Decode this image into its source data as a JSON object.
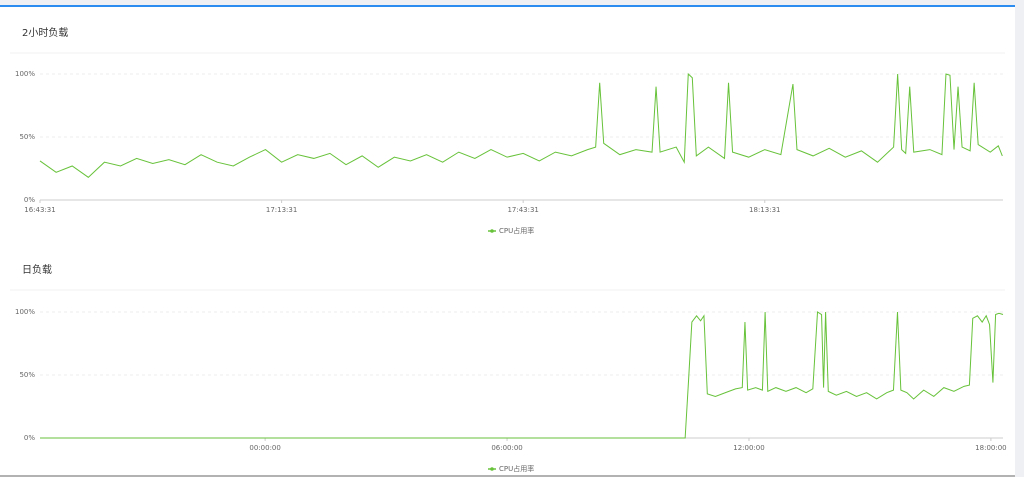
{
  "chart_data": [
    {
      "type": "line",
      "title": "2小时负载",
      "x": [
        "16:43:31",
        "16:45:31",
        "16:47:31",
        "16:49:31",
        "16:51:31",
        "16:53:31",
        "16:55:31",
        "16:57:31",
        "16:59:31",
        "17:01:31",
        "17:03:31",
        "17:05:31",
        "17:07:31",
        "17:09:31",
        "17:11:31",
        "17:13:31",
        "17:15:31",
        "17:17:31",
        "17:19:31",
        "17:21:31",
        "17:23:31",
        "17:25:31",
        "17:27:31",
        "17:29:31",
        "17:31:31",
        "17:33:31",
        "17:35:31",
        "17:37:31",
        "17:39:31",
        "17:41:31",
        "17:43:31",
        "17:45:31",
        "17:47:31",
        "17:49:31",
        "17:51:31",
        "17:52:31",
        "17:53:01",
        "17:53:31",
        "17:55:31",
        "17:57:31",
        "17:59:31",
        "18:00:01",
        "18:00:31",
        "18:02:31",
        "18:03:31",
        "18:04:01",
        "18:04:31",
        "18:05:01",
        "18:06:31",
        "18:08:31",
        "18:09:01",
        "18:09:31",
        "18:11:31",
        "18:13:31",
        "18:15:31",
        "18:17:01",
        "18:17:31",
        "18:19:31",
        "18:21:31",
        "18:23:31",
        "18:25:31",
        "18:27:31",
        "18:29:31",
        "18:30:01",
        "18:30:31",
        "18:31:01",
        "18:31:31",
        "18:32:01",
        "18:34:01",
        "18:35:31",
        "18:36:01",
        "18:36:31",
        "18:37:01",
        "18:37:31",
        "18:38:01",
        "18:39:01",
        "18:39:31",
        "18:40:01",
        "18:41:31",
        "18:42:31",
        "18:43:01"
      ],
      "series": [
        {
          "name": "CPU占用率",
          "color": "#67c23a",
          "values": [
            31,
            22,
            27,
            18,
            30,
            27,
            33,
            29,
            32,
            28,
            36,
            30,
            27,
            34,
            40,
            30,
            36,
            33,
            37,
            28,
            35,
            26,
            34,
            31,
            36,
            30,
            38,
            33,
            40,
            34,
            37,
            31,
            38,
            35,
            40,
            42,
            93,
            45,
            36,
            40,
            38,
            90,
            38,
            42,
            30,
            100,
            97,
            35,
            42,
            33,
            93,
            38,
            34,
            40,
            36,
            92,
            40,
            35,
            41,
            34,
            39,
            30,
            42,
            100,
            40,
            37,
            90,
            38,
            40,
            36,
            100,
            99,
            40,
            90,
            42,
            39,
            93,
            44,
            38,
            43,
            35
          ]
        }
      ],
      "xlim": [
        "16:43:31",
        "18:43:06"
      ],
      "xticks": [
        "16:43:31",
        "17:13:31",
        "17:43:31",
        "18:13:31"
      ],
      "ylim": [
        0,
        100
      ],
      "yticks": [
        {
          "value": 0,
          "label": "0%"
        },
        {
          "value": 50,
          "label": "50%"
        },
        {
          "value": 100,
          "label": "100%"
        }
      ],
      "grid": true
    },
    {
      "type": "line",
      "title": "日负载",
      "x": [
        "18:25:00",
        "20:00:00",
        "22:00:00",
        "00:00:00",
        "02:00:00",
        "04:00:00",
        "06:00:00",
        "08:00:00",
        "10:00:00",
        "10:25:00",
        "10:30:00",
        "10:35:00",
        "10:42:00",
        "10:48:00",
        "10:53:00",
        "10:58:00",
        "11:10:00",
        "11:25:00",
        "11:40:00",
        "11:50:00",
        "11:54:00",
        "11:58:00",
        "12:10:00",
        "12:20:00",
        "12:24:00",
        "12:28:00",
        "12:40:00",
        "12:55:00",
        "13:10:00",
        "13:25:00",
        "13:35:00",
        "13:42:00",
        "13:48:00",
        "13:51:00",
        "13:54:00",
        "13:58:00",
        "14:10:00",
        "14:25:00",
        "14:40:00",
        "14:55:00",
        "15:10:00",
        "15:25:00",
        "15:35:00",
        "15:41:00",
        "15:46:00",
        "15:55:00",
        "16:05:00",
        "16:20:00",
        "16:35:00",
        "16:50:00",
        "17:05:00",
        "17:20:00",
        "17:28:00",
        "17:33:00",
        "17:40:00",
        "17:47:00",
        "17:53:00",
        "17:58:00",
        "18:03:00",
        "18:07:00",
        "18:12:00",
        "18:18:00"
      ],
      "series": [
        {
          "name": "CPU占用率",
          "color": "#67c23a",
          "values": [
            0,
            0,
            0,
            0,
            0,
            0,
            0,
            0,
            0,
            0,
            45,
            92,
            97,
            93,
            97,
            35,
            33,
            36,
            39,
            40,
            92,
            38,
            40,
            38,
            100,
            37,
            40,
            37,
            40,
            36,
            39,
            100,
            98,
            40,
            100,
            37,
            34,
            37,
            33,
            36,
            31,
            36,
            38,
            100,
            38,
            36,
            31,
            38,
            33,
            40,
            37,
            41,
            42,
            95,
            97,
            92,
            97,
            90,
            44,
            98,
            99,
            98
          ]
        }
      ],
      "xlim": [
        "18:25:00",
        "18:18:00"
      ],
      "xticks": [
        "00:00:00",
        "06:00:00",
        "12:00:00",
        "18:00:00"
      ],
      "ylim": [
        0,
        100
      ],
      "yticks": [
        {
          "value": 0,
          "label": "0%"
        },
        {
          "value": 50,
          "label": "50%"
        },
        {
          "value": 100,
          "label": "100%"
        }
      ],
      "grid": true
    }
  ]
}
